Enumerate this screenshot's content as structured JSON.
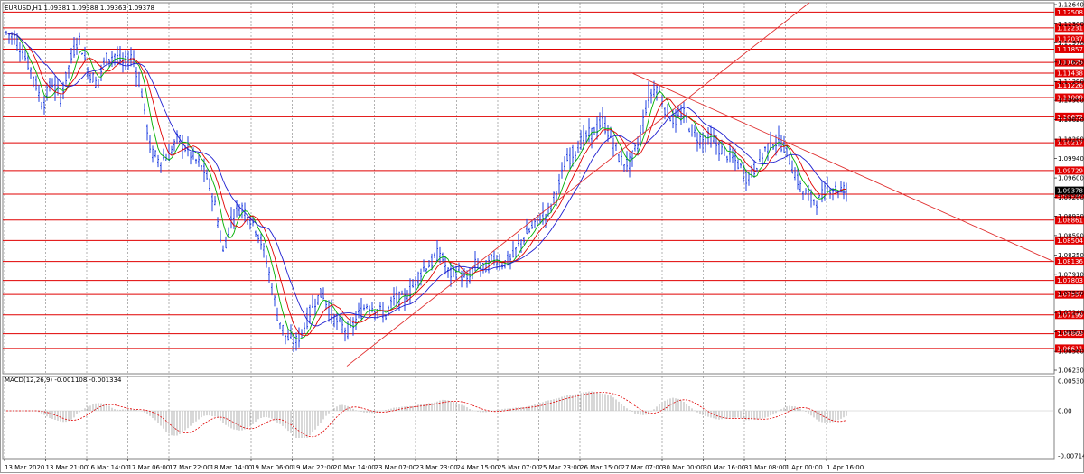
{
  "chart_header": "EURUSD,H1  1.09381 1.09388 1.09363 1.09378",
  "macd_header": "MACD(12,26,9) -0.001108 -0.001334",
  "price_axis_ticks": [
    "1.12640",
    "1.12300",
    "1.11970",
    "1.11630",
    "1.11290",
    "1.10960",
    "1.10620",
    "1.10280",
    "1.09940",
    "1.09600",
    "1.09260",
    "1.08930",
    "1.08590",
    "1.08250",
    "1.07910",
    "1.07580",
    "1.07240",
    "1.06900",
    "1.06560",
    "1.06230"
  ],
  "horizontal_levels": [
    "1.12508",
    "1.12231",
    "1.12037",
    "1.11857",
    "1.11625",
    "1.11438",
    "1.11226",
    "1.11009",
    "1.10672",
    "1.10217",
    "1.09729",
    "1.09316",
    "1.08861",
    "1.08504",
    "1.08136",
    "1.07803",
    "1.07557",
    "1.07199",
    "1.06869",
    "1.06611"
  ],
  "current_price": "1.09378",
  "macd_axis_ticks": [
    "0.005305",
    "0.00",
    "-0.007148"
  ],
  "time_axis": [
    "13 Mar 2020",
    "13 Mar 21:00",
    "16 Mar 14:00",
    "17 Mar 06:00",
    "17 Mar 22:00",
    "18 Mar 14:00",
    "19 Mar 06:00",
    "19 Mar 22:00",
    "20 Mar 14:00",
    "23 Mar 07:00",
    "23 Mar 23:00",
    "24 Mar 15:00",
    "25 Mar 07:00",
    "25 Mar 23:00",
    "26 Mar 15:00",
    "27 Mar 07:00",
    "30 Mar 00:00",
    "30 Mar 16:00",
    "31 Mar 08:00",
    "1 Apr 00:00",
    "1 Apr 16:00"
  ],
  "colors": {
    "bars": "#2040e0",
    "levels": "#e00000",
    "trendline": "#e03030",
    "ma_fast": "#00b000",
    "ma_mid": "#e00000",
    "ma_slow": "#2020d0",
    "macd_signal": "#e00000",
    "macd_hist": "#b0b0b0",
    "grid": "#808080",
    "label_bg": "#e00000",
    "current_bg": "#000000"
  },
  "chart_data": {
    "type": "candlestick-ohlc",
    "symbol": "EURUSD",
    "timeframe": "H1",
    "last_bar": {
      "open": 1.09381,
      "high": 1.09388,
      "low": 1.09363,
      "close": 1.09378
    },
    "ylim": [
      1.0623,
      1.1264
    ],
    "close_path": [
      [
        0,
        1.1215
      ],
      [
        10,
        1.1205
      ],
      [
        20,
        1.1175
      ],
      [
        30,
        1.114
      ],
      [
        40,
        1.1085
      ],
      [
        50,
        1.113
      ],
      [
        60,
        1.11
      ],
      [
        70,
        1.116
      ],
      [
        80,
        1.121
      ],
      [
        90,
        1.115
      ],
      [
        100,
        1.1125
      ],
      [
        110,
        1.117
      ],
      [
        120,
        1.1175
      ],
      [
        130,
        1.116
      ],
      [
        140,
        1.1175
      ],
      [
        150,
        1.111
      ],
      [
        160,
        1.1005
      ],
      [
        170,
        1.099
      ],
      [
        180,
        1.1
      ],
      [
        190,
        1.103
      ],
      [
        200,
        1.101
      ],
      [
        210,
        1.099
      ],
      [
        220,
        1.097
      ],
      [
        230,
        1.092
      ],
      [
        240,
        1.083
      ],
      [
        250,
        1.0895
      ],
      [
        260,
        1.091
      ],
      [
        270,
        1.089
      ],
      [
        280,
        1.086
      ],
      [
        290,
        1.08
      ],
      [
        300,
        1.072
      ],
      [
        310,
        1.068
      ],
      [
        320,
        1.067
      ],
      [
        330,
        1.07
      ],
      [
        340,
        1.074
      ],
      [
        350,
        1.076
      ],
      [
        360,
        1.072
      ],
      [
        370,
        1.07
      ],
      [
        380,
        1.069
      ],
      [
        390,
        1.072
      ],
      [
        400,
        1.074
      ],
      [
        410,
        1.073
      ],
      [
        420,
        1.072
      ],
      [
        430,
        1.075
      ],
      [
        440,
        1.0745
      ],
      [
        450,
        1.077
      ],
      [
        460,
        1.08
      ],
      [
        470,
        1.081
      ],
      [
        480,
        1.083
      ],
      [
        490,
        1.079
      ],
      [
        500,
        1.08
      ],
      [
        510,
        1.0775
      ],
      [
        520,
        1.081
      ],
      [
        530,
        1.08
      ],
      [
        540,
        1.082
      ],
      [
        550,
        1.081
      ],
      [
        560,
        1.082
      ],
      [
        570,
        1.085
      ],
      [
        580,
        1.087
      ],
      [
        590,
        1.089
      ],
      [
        600,
        1.09
      ],
      [
        610,
        1.094
      ],
      [
        620,
        1.099
      ],
      [
        630,
        1.101
      ],
      [
        640,
        1.103
      ],
      [
        650,
        1.104
      ],
      [
        660,
        1.106
      ],
      [
        670,
        1.103
      ],
      [
        680,
        1.099
      ],
      [
        690,
        1.0985
      ],
      [
        700,
        1.102
      ],
      [
        710,
        1.11
      ],
      [
        720,
        1.112
      ],
      [
        730,
        1.108
      ],
      [
        740,
        1.106
      ],
      [
        750,
        1.107
      ],
      [
        760,
        1.104
      ],
      [
        770,
        1.1025
      ],
      [
        780,
        1.103
      ],
      [
        790,
        1.101
      ],
      [
        800,
        1.1
      ],
      [
        810,
        1.0985
      ],
      [
        820,
        1.096
      ],
      [
        830,
        1.098
      ],
      [
        840,
        1.101
      ],
      [
        850,
        1.1025
      ],
      [
        860,
        1.102
      ],
      [
        870,
        1.098
      ],
      [
        880,
        1.094
      ],
      [
        890,
        1.0925
      ],
      [
        900,
        1.092
      ],
      [
        910,
        1.0945
      ],
      [
        920,
        1.094
      ],
      [
        930,
        1.0938
      ]
    ]
  }
}
